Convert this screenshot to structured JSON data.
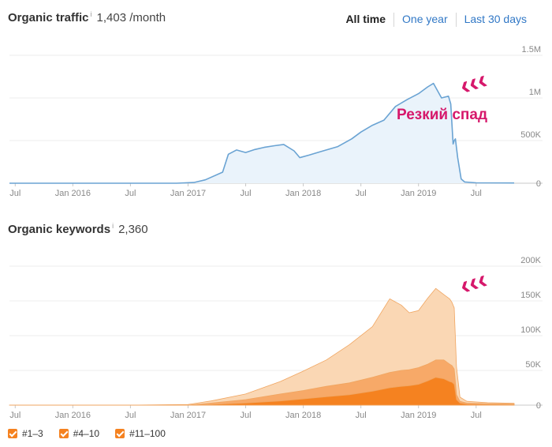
{
  "traffic_header": {
    "title": "Organic traffic",
    "info": "i",
    "value": "1,403 /month"
  },
  "range": {
    "all_time": "All time",
    "one_year": "One year",
    "last_30": "Last 30 days"
  },
  "keywords_header": {
    "title": "Organic keywords",
    "info": "i",
    "value": "2,360"
  },
  "annotation": {
    "text": "Резкий  спад",
    "arrows": "‹‹‹"
  },
  "legend": [
    "#1–3",
    "#4–10",
    "#11–100"
  ],
  "colors": {
    "traffic_line": "#6aa3d3",
    "traffic_fill": "#eaf3fb",
    "top3": "#f58220",
    "top10": "#f7a968",
    "top100": "#fad7b4",
    "annotation": "#d6186b"
  },
  "chart_data": [
    {
      "type": "area",
      "title": "Organic traffic",
      "x_ticks": [
        "Jul",
        "Jan 2016",
        "Jul",
        "Jan 2017",
        "Jul",
        "Jan 2018",
        "Jul",
        "Jan 2019",
        "Jul"
      ],
      "x_tick_dates": [
        2015.5,
        2016.0,
        2016.5,
        2017.0,
        2017.5,
        2018.0,
        2018.5,
        2019.0,
        2019.5
      ],
      "xlim": [
        2015.45,
        2019.83
      ],
      "y_tick_labels": [
        "1.5M",
        "1M",
        "500K",
        "0"
      ],
      "y_tick_values": [
        1500000,
        1000000,
        500000,
        0
      ],
      "ylim": [
        0,
        1500000
      ],
      "series": [
        {
          "name": "Organic traffic",
          "x": [
            2015.45,
            2016.9,
            2017.05,
            2017.15,
            2017.3,
            2017.35,
            2017.42,
            2017.5,
            2017.58,
            2017.66,
            2017.75,
            2017.83,
            2017.92,
            2017.97,
            2018.05,
            2018.15,
            2018.3,
            2018.42,
            2018.5,
            2018.6,
            2018.7,
            2018.8,
            2018.9,
            2019.0,
            2019.08,
            2019.13,
            2019.2,
            2019.26,
            2019.28,
            2019.3,
            2019.31,
            2019.32,
            2019.34,
            2019.37,
            2019.4,
            2019.5,
            2019.83
          ],
          "y": [
            0,
            0,
            8000,
            40000,
            130000,
            340000,
            390000,
            360000,
            395000,
            420000,
            440000,
            455000,
            380000,
            300000,
            330000,
            370000,
            430000,
            520000,
            600000,
            680000,
            740000,
            900000,
            980000,
            1050000,
            1130000,
            1170000,
            1000000,
            1020000,
            930000,
            460000,
            500000,
            520000,
            300000,
            50000,
            15000,
            5000,
            3000
          ]
        }
      ]
    },
    {
      "type": "area",
      "title": "Organic keywords",
      "stacked": true,
      "x_ticks": [
        "Jul",
        "Jan 2016",
        "Jul",
        "Jan 2017",
        "Jul",
        "Jan 2018",
        "Jul",
        "Jan 2019",
        "Jul"
      ],
      "x_tick_dates": [
        2015.5,
        2016.0,
        2016.5,
        2017.0,
        2017.5,
        2018.0,
        2018.5,
        2019.0,
        2019.5
      ],
      "xlim": [
        2015.45,
        2019.83
      ],
      "y_tick_labels": [
        "200K",
        "150K",
        "100K",
        "50K",
        "0"
      ],
      "y_tick_values": [
        200000,
        150000,
        100000,
        50000,
        0
      ],
      "ylim": [
        0,
        200000
      ],
      "x": [
        2015.45,
        2016.5,
        2017.0,
        2017.2,
        2017.5,
        2017.8,
        2018.0,
        2018.2,
        2018.4,
        2018.6,
        2018.75,
        2018.85,
        2018.92,
        2019.0,
        2019.08,
        2019.15,
        2019.22,
        2019.27,
        2019.29,
        2019.31,
        2019.33,
        2019.36,
        2019.42,
        2019.6,
        2019.83
      ],
      "series": [
        {
          "name": "#1–3",
          "values": [
            0,
            0,
            0,
            1000,
            3000,
            6000,
            9000,
            12000,
            15000,
            20000,
            25000,
            27000,
            28000,
            30000,
            35000,
            40000,
            38000,
            34000,
            33000,
            30000,
            8000,
            3000,
            1500,
            1000,
            800
          ]
        },
        {
          "name": "#4–10",
          "values": [
            0,
            0,
            0,
            2000,
            5000,
            10000,
            12000,
            15000,
            17000,
            20000,
            22000,
            23000,
            23000,
            24000,
            24000,
            25000,
            27000,
            25000,
            24000,
            22000,
            7000,
            2500,
            1500,
            1000,
            800
          ]
        },
        {
          "name": "#11–100",
          "values": [
            0,
            0,
            1000,
            3000,
            8000,
            18000,
            28000,
            38000,
            55000,
            73000,
            106000,
            94000,
            82000,
            82000,
            95000,
            103000,
            94000,
            94000,
            91000,
            88000,
            40000,
            6000,
            2500,
            1500,
            1000
          ]
        }
      ]
    }
  ]
}
